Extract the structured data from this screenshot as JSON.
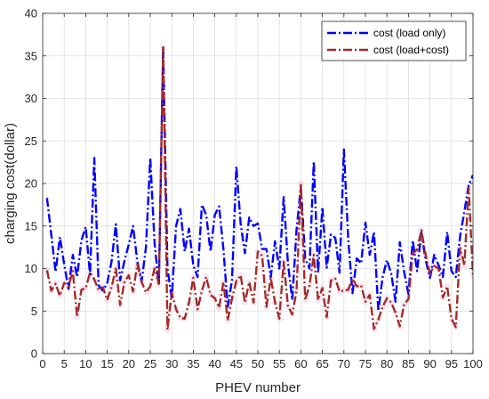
{
  "chart_data": {
    "type": "line",
    "title": "",
    "xlabel": "PHEV number",
    "ylabel": "charging cost(dollar)",
    "xlim": [
      0,
      100
    ],
    "ylim": [
      0,
      40
    ],
    "x_ticks": [
      0,
      5,
      10,
      15,
      20,
      25,
      30,
      35,
      40,
      45,
      50,
      55,
      60,
      65,
      70,
      75,
      80,
      85,
      90,
      95,
      100
    ],
    "y_ticks": [
      0,
      5,
      10,
      15,
      20,
      25,
      30,
      35,
      40
    ],
    "grid": true,
    "legend_position": "top-right",
    "series": [
      {
        "name": "cost (load only)",
        "color": "#0000ff",
        "style": "dash-dot",
        "x": [
          1,
          2,
          3,
          4,
          5,
          6,
          7,
          8,
          9,
          10,
          11,
          12,
          13,
          14,
          15,
          16,
          17,
          18,
          19,
          20,
          21,
          22,
          23,
          24,
          25,
          26,
          27,
          28,
          29,
          30,
          31,
          32,
          33,
          34,
          35,
          36,
          37,
          38,
          39,
          40,
          41,
          42,
          43,
          44,
          45,
          46,
          47,
          48,
          49,
          50,
          51,
          52,
          53,
          54,
          55,
          56,
          57,
          58,
          59,
          60,
          61,
          62,
          63,
          64,
          65,
          66,
          67,
          68,
          69,
          70,
          71,
          72,
          73,
          74,
          75,
          76,
          77,
          78,
          79,
          80,
          81,
          82,
          83,
          84,
          85,
          86,
          87,
          88,
          89,
          90,
          91,
          92,
          93,
          94,
          95,
          96,
          97,
          98,
          99,
          100
        ],
        "values": [
          18.3,
          14,
          9.6,
          13.7,
          10.5,
          7.6,
          11.6,
          9,
          13.3,
          14.9,
          9.3,
          23,
          8,
          7.4,
          8.3,
          10.8,
          15.2,
          8.6,
          10.9,
          12.8,
          15,
          10.8,
          8.5,
          12.5,
          23,
          13,
          8,
          36.1,
          10,
          6.5,
          15,
          17,
          12,
          14.7,
          10.4,
          9,
          17.5,
          16.3,
          12,
          16.3,
          17.3,
          12.3,
          5.5,
          8.6,
          22,
          15.3,
          11.8,
          16,
          15,
          15.3,
          12.3,
          12.3,
          9,
          13.2,
          10,
          18.4,
          10.6,
          6.3,
          14.6,
          19.6,
          11.2,
          10,
          22.6,
          9.5,
          17.2,
          10.1,
          14,
          13.6,
          9.5,
          24,
          13.5,
          7.1,
          11.2,
          10.6,
          15.4,
          11.6,
          14.3,
          5,
          9,
          11,
          9.4,
          6.1,
          13.1,
          9.6,
          7,
          13.3,
          9.7,
          14.2,
          11,
          8.9,
          11.6,
          10.4,
          9,
          14.3,
          9.7,
          9,
          13.8,
          16.7,
          19.8,
          21
        ]
      },
      {
        "name": "cost (load+cost)",
        "color": "#a52a2a",
        "style": "dash-dot",
        "x": [
          1,
          2,
          3,
          4,
          5,
          6,
          7,
          8,
          9,
          10,
          11,
          12,
          13,
          14,
          15,
          16,
          17,
          18,
          19,
          20,
          21,
          22,
          23,
          24,
          25,
          26,
          27,
          28,
          29,
          30,
          31,
          32,
          33,
          34,
          35,
          36,
          37,
          38,
          39,
          40,
          41,
          42,
          43,
          44,
          45,
          46,
          47,
          48,
          49,
          50,
          51,
          52,
          53,
          54,
          55,
          56,
          57,
          58,
          59,
          60,
          61,
          62,
          63,
          64,
          65,
          66,
          67,
          68,
          69,
          70,
          71,
          72,
          73,
          74,
          75,
          76,
          77,
          78,
          79,
          80,
          81,
          82,
          83,
          84,
          85,
          86,
          87,
          88,
          89,
          90,
          91,
          92,
          93,
          94,
          95,
          96,
          97,
          98,
          99,
          100
        ],
        "values": [
          9.8,
          7.4,
          8.2,
          6.8,
          8.3,
          7.9,
          9.7,
          4.3,
          7.5,
          7.7,
          9.5,
          8.7,
          7.5,
          7.8,
          6.3,
          7.8,
          10,
          5.7,
          8.4,
          9.2,
          7.3,
          10.5,
          8.4,
          7.2,
          7.9,
          10,
          8.2,
          36,
          2.8,
          7.2,
          5.2,
          4.2,
          4.1,
          6,
          8.9,
          5.2,
          7.4,
          9,
          6.9,
          6.5,
          5.4,
          8.4,
          3.9,
          6.5,
          8.5,
          9.2,
          6,
          8.4,
          6,
          12,
          11.5,
          5.5,
          8.9,
          6,
          4.1,
          10.8,
          5.6,
          4.6,
          7.4,
          20,
          6.3,
          8,
          11.6,
          6.3,
          7.7,
          4.3,
          8.6,
          8.8,
          7.3,
          7.4,
          7.5,
          8.8,
          7.9,
          8,
          6.1,
          6.9,
          2.9,
          4,
          5.5,
          6.5,
          6,
          4.8,
          3.2,
          5.8,
          6.4,
          11.8,
          12.2,
          14.5,
          11.6,
          9.4,
          10.3,
          10,
          6.6,
          7.9,
          4.1,
          3.1,
          12.4,
          10.4,
          19.5,
          9.1
        ]
      }
    ]
  }
}
